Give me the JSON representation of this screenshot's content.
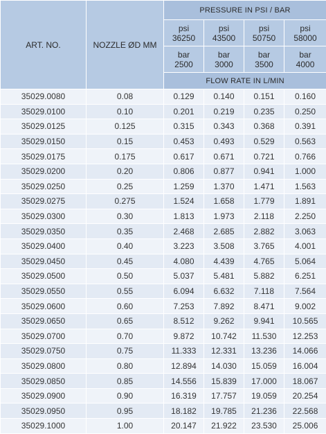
{
  "header": {
    "art_no": "ART. NO.",
    "nozzle": "NOZZLE ØD MM",
    "pressure": "PRESSURE IN PSI / BAR",
    "flow_rate": "FLOW RATE IN L/MIN",
    "psi_unit": "psi",
    "bar_unit": "bar",
    "psi_values": [
      "36250",
      "43500",
      "50750",
      "58000"
    ],
    "bar_values": [
      "2500",
      "3000",
      "3500",
      "4000"
    ]
  },
  "rows": [
    {
      "art": "35029.0080",
      "nozzle": "0.08",
      "f1": "0.129",
      "f2": "0.140",
      "f3": "0.151",
      "f4": "0.160"
    },
    {
      "art": "35029.0100",
      "nozzle": "0.10",
      "f1": "0.201",
      "f2": "0.219",
      "f3": "0.235",
      "f4": "0.250"
    },
    {
      "art": "35029.0125",
      "nozzle": "0.125",
      "f1": "0.315",
      "f2": "0.343",
      "f3": "0.368",
      "f4": "0.391"
    },
    {
      "art": "35029.0150",
      "nozzle": "0.15",
      "f1": "0.453",
      "f2": "0.493",
      "f3": "0.529",
      "f4": "0.563"
    },
    {
      "art": "35029.0175",
      "nozzle": "0.175",
      "f1": "0.617",
      "f2": "0.671",
      "f3": "0.721",
      "f4": "0.766"
    },
    {
      "art": "35029.0200",
      "nozzle": "0.20",
      "f1": "0.806",
      "f2": "0.877",
      "f3": "0.941",
      "f4": "1.000"
    },
    {
      "art": "35029.0250",
      "nozzle": "0.25",
      "f1": "1.259",
      "f2": "1.370",
      "f3": "1.471",
      "f4": "1.563"
    },
    {
      "art": "35029.0275",
      "nozzle": "0.275",
      "f1": "1.524",
      "f2": "1.658",
      "f3": "1.779",
      "f4": "1.891"
    },
    {
      "art": "35029.0300",
      "nozzle": "0.30",
      "f1": "1.813",
      "f2": "1.973",
      "f3": "2.118",
      "f4": "2.250"
    },
    {
      "art": "35029.0350",
      "nozzle": "0.35",
      "f1": "2.468",
      "f2": "2.685",
      "f3": "2.882",
      "f4": "3.063"
    },
    {
      "art": "35029.0400",
      "nozzle": "0.40",
      "f1": "3.223",
      "f2": "3.508",
      "f3": "3.765",
      "f4": "4.001"
    },
    {
      "art": "35029.0450",
      "nozzle": "0.45",
      "f1": "4.080",
      "f2": "4.439",
      "f3": "4.765",
      "f4": "5.064"
    },
    {
      "art": "35029.0500",
      "nozzle": "0.50",
      "f1": "5.037",
      "f2": "5.481",
      "f3": "5.882",
      "f4": "6.251"
    },
    {
      "art": "35029.0550",
      "nozzle": "0.55",
      "f1": "6.094",
      "f2": "6.632",
      "f3": "7.118",
      "f4": "7.564"
    },
    {
      "art": "35029.0600",
      "nozzle": "0.60",
      "f1": "7.253",
      "f2": "7.892",
      "f3": "8.471",
      "f4": "9.002"
    },
    {
      "art": "35029.0650",
      "nozzle": "0.65",
      "f1": "8.512",
      "f2": "9.262",
      "f3": "9.941",
      "f4": "10.565"
    },
    {
      "art": "35029.0700",
      "nozzle": "0.70",
      "f1": "9.872",
      "f2": "10.742",
      "f3": "11.530",
      "f4": "12.253"
    },
    {
      "art": "35029.0750",
      "nozzle": "0.75",
      "f1": "11.333",
      "f2": "12.331",
      "f3": "13.236",
      "f4": "14.066"
    },
    {
      "art": "35029.0800",
      "nozzle": "0.80",
      "f1": "12.894",
      "f2": "14.030",
      "f3": "15.059",
      "f4": "16.004"
    },
    {
      "art": "35029.0850",
      "nozzle": "0.85",
      "f1": "14.556",
      "f2": "15.839",
      "f3": "17.000",
      "f4": "18.067"
    },
    {
      "art": "35029.0900",
      "nozzle": "0.90",
      "f1": "16.319",
      "f2": "17.757",
      "f3": "19.059",
      "f4": "20.254"
    },
    {
      "art": "35029.0950",
      "nozzle": "0.95",
      "f1": "18.182",
      "f2": "19.785",
      "f3": "21.236",
      "f4": "22.568"
    },
    {
      "art": "35029.1000",
      "nozzle": "1.00",
      "f1": "20.147",
      "f2": "21.922",
      "f3": "23.530",
      "f4": "25.006"
    }
  ]
}
